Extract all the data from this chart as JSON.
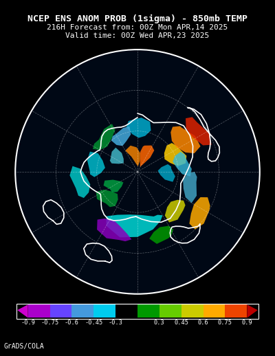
{
  "title_line1": "NCEP ENS ANOM PROB (1sigma) - 850mb TEMP",
  "title_line2": "216H Forecast from: 00Z Mon APR,14 2025",
  "title_line3": "Valid time: 00Z Wed APR,23 2025",
  "credit": "GrADS/COLA",
  "background_color": "#000000",
  "colorbar_tick_labels": [
    "-0.9",
    "-0.75",
    "-0.6",
    "-0.45",
    "-0.3",
    "0.3",
    "0.45",
    "0.6",
    "0.75",
    "0.9"
  ],
  "cb_colors": [
    "#aa00cc",
    "#6644ff",
    "#4499dd",
    "#00ccee",
    "#000000",
    "#009900",
    "#66cc00",
    "#cccc00",
    "#ffaa00",
    "#ee4400"
  ],
  "cb_left_arrow_color": "#cc00cc",
  "cb_right_arrow_color": "#bb0000",
  "title_fontsize": 9.5,
  "subtitle_fontsize": 8.0,
  "credit_fontsize": 7,
  "map_bg_color": "#000010",
  "grid_color": "#ffffff",
  "grid_alpha": 0.35,
  "grid_lw": 0.5,
  "coast_color": "#ffffff",
  "coast_lw": 1.2,
  "regions": [
    {
      "lons": [
        160,
        175,
        190,
        205,
        215,
        210,
        195,
        180,
        165,
        155,
        150,
        155,
        160
      ],
      "lats": [
        55,
        58,
        58,
        55,
        50,
        44,
        40,
        42,
        46,
        50,
        53,
        55,
        55
      ],
      "color": "#00cccc",
      "alpha": 0.9
    },
    {
      "lons": [
        195,
        205,
        215,
        220,
        215,
        205,
        198,
        190,
        185,
        190,
        195
      ],
      "lats": [
        38,
        36,
        38,
        44,
        48,
        50,
        48,
        44,
        40,
        38,
        38
      ],
      "color": "#8800bb",
      "alpha": 0.85
    },
    {
      "lons": [
        155,
        165,
        170,
        165,
        158,
        150,
        148,
        152,
        155
      ],
      "lats": [
        36,
        35,
        40,
        44,
        46,
        44,
        40,
        37,
        36
      ],
      "color": "#009900",
      "alpha": 0.85
    },
    {
      "lons": [
        130,
        140,
        148,
        148,
        140,
        132,
        125,
        122,
        125,
        130
      ],
      "lats": [
        46,
        44,
        46,
        52,
        56,
        57,
        54,
        50,
        47,
        46
      ],
      "color": "#cccc00",
      "alpha": 0.85
    },
    {
      "lons": [
        118,
        128,
        135,
        135,
        128,
        120,
        112,
        110,
        115,
        118
      ],
      "lats": [
        30,
        28,
        30,
        36,
        40,
        42,
        40,
        35,
        31,
        30
      ],
      "color": "#ffaa00",
      "alpha": 0.85
    },
    {
      "lons": [
        60,
        72,
        80,
        82,
        75,
        65,
        55,
        48,
        50,
        58,
        60
      ],
      "lats": [
        55,
        52,
        54,
        60,
        65,
        68,
        66,
        61,
        57,
        55,
        55
      ],
      "color": "#ffcc00",
      "alpha": 0.85
    },
    {
      "lons": [
        45,
        58,
        68,
        72,
        68,
        58,
        48,
        40,
        38,
        43,
        45
      ],
      "lats": [
        44,
        40,
        40,
        46,
        52,
        56,
        56,
        52,
        48,
        44,
        44
      ],
      "color": "#ff8800",
      "alpha": 0.85
    },
    {
      "lons": [
        50,
        62,
        70,
        68,
        58,
        48,
        42,
        45,
        50
      ],
      "lats": [
        33,
        30,
        32,
        38,
        42,
        42,
        37,
        33,
        33
      ],
      "color": "#dd2200",
      "alpha": 0.85
    },
    {
      "lons": [
        15,
        28,
        38,
        42,
        38,
        28,
        18,
        10,
        8,
        12,
        15
      ],
      "lats": [
        70,
        68,
        70,
        76,
        82,
        86,
        84,
        80,
        75,
        71,
        70
      ],
      "color": "#ff6600",
      "alpha": 0.85
    },
    {
      "lons": [
        330,
        345,
        358,
        8,
        12,
        5,
        350,
        338,
        330
      ],
      "lats": [
        72,
        70,
        72,
        76,
        82,
        86,
        84,
        78,
        72
      ],
      "color": "#ff8800",
      "alpha": 0.8
    },
    {
      "lons": [
        350,
        4,
        14,
        18,
        12,
        2,
        352,
        346,
        350
      ],
      "lats": [
        52,
        50,
        52,
        58,
        63,
        65,
        62,
        56,
        52
      ],
      "color": "#00aacc",
      "alpha": 0.85
    },
    {
      "lons": [
        330,
        342,
        350,
        350,
        340,
        330,
        322,
        320,
        325,
        330
      ],
      "lats": [
        58,
        56,
        56,
        62,
        66,
        68,
        65,
        60,
        58,
        58
      ],
      "color": "#44aadd",
      "alpha": 0.85
    },
    {
      "lons": [
        295,
        308,
        318,
        320,
        313,
        302,
        293,
        288,
        292,
        295
      ],
      "lats": [
        68,
        66,
        66,
        72,
        76,
        78,
        75,
        70,
        68,
        68
      ],
      "color": "#44bbcc",
      "alpha": 0.82
    },
    {
      "lons": [
        270,
        283,
        293,
        295,
        288,
        277,
        268,
        263,
        267,
        270
      ],
      "lats": [
        55,
        52,
        52,
        58,
        63,
        66,
        63,
        58,
        55,
        55
      ],
      "color": "#00bbcc",
      "alpha": 0.85
    },
    {
      "lons": [
        255,
        267,
        275,
        273,
        265,
        255,
        247,
        244,
        248,
        255
      ],
      "lats": [
        43,
        40,
        42,
        48,
        52,
        54,
        51,
        46,
        43,
        43
      ],
      "color": "#00cccc",
      "alpha": 0.82
    },
    {
      "lons": [
        310,
        322,
        332,
        332,
        322,
        310,
        300,
        297,
        303,
        310
      ],
      "lats": [
        53,
        50,
        50,
        55,
        59,
        61,
        58,
        53,
        52,
        53
      ],
      "color": "#009933",
      "alpha": 0.8
    },
    {
      "lons": [
        85,
        97,
        106,
        106,
        98,
        87,
        79,
        76,
        81,
        85
      ],
      "lats": [
        65,
        62,
        63,
        69,
        73,
        75,
        72,
        67,
        65,
        65
      ],
      "color": "#00aacc",
      "alpha": 0.8
    },
    {
      "lons": [
        75,
        87,
        95,
        93,
        84,
        74,
        67,
        65,
        70,
        75
      ],
      "lats": [
        53,
        50,
        51,
        57,
        61,
        63,
        60,
        55,
        53,
        53
      ],
      "color": "#33bbdd",
      "alpha": 0.8
    },
    {
      "lons": [
        100,
        112,
        120,
        118,
        110,
        100,
        92,
        90,
        95,
        100
      ],
      "lats": [
        46,
        43,
        44,
        50,
        54,
        56,
        53,
        48,
        46,
        46
      ],
      "color": "#44aacc",
      "alpha": 0.8
    },
    {
      "lons": [
        225,
        236,
        244,
        242,
        233,
        222,
        215,
        213,
        218,
        225
      ],
      "lats": [
        57,
        54,
        56,
        62,
        66,
        68,
        65,
        60,
        57,
        57
      ],
      "color": "#009933",
      "alpha": 0.8
    },
    {
      "lons": [
        238,
        248,
        255,
        252,
        243,
        233,
        227,
        225,
        231,
        238
      ],
      "lats": [
        66,
        63,
        65,
        71,
        75,
        77,
        74,
        69,
        66,
        66
      ],
      "color": "#00aa44",
      "alpha": 0.78
    }
  ],
  "coastlines": [
    {
      "lons": [
        0,
        5,
        10,
        18,
        25,
        32,
        38,
        45,
        55,
        65,
        75,
        85,
        95,
        105,
        115,
        125,
        135,
        145,
        155,
        165,
        175,
        182
      ],
      "lats": [
        47,
        48,
        50,
        52,
        50,
        47,
        44,
        42,
        43,
        45,
        48,
        52,
        55,
        57,
        55,
        52,
        50,
        48,
        49,
        52,
        55,
        57
      ]
    },
    {
      "lons": [
        182,
        188,
        194,
        200,
        206,
        212,
        218,
        224,
        228,
        232,
        235,
        238,
        240
      ],
      "lats": [
        57,
        56,
        54,
        52,
        50,
        49,
        50,
        52,
        54,
        56,
        57,
        58,
        58
      ]
    },
    {
      "lons": [
        240,
        245,
        250,
        255,
        260,
        265,
        270,
        275,
        280,
        285,
        290,
        295,
        298,
        300
      ],
      "lats": [
        58,
        56,
        54,
        52,
        50,
        49,
        48,
        49,
        50,
        52,
        54,
        56,
        57,
        58
      ]
    },
    {
      "lons": [
        300,
        305,
        310,
        315,
        320,
        325,
        330,
        335,
        340,
        345,
        350,
        355,
        360
      ],
      "lats": [
        58,
        57,
        55,
        53,
        52,
        52,
        53,
        54,
        55,
        55,
        54,
        52,
        50
      ]
    },
    {
      "lons": [
        130,
        132,
        135,
        140,
        145,
        148,
        150,
        152,
        153,
        152,
        150,
        148,
        145,
        142,
        140,
        138,
        135,
        132,
        130
      ],
      "lats": [
        30,
        28,
        26,
        25,
        26,
        28,
        30,
        33,
        36,
        39,
        41,
        42,
        41,
        39,
        37,
        34,
        32,
        30,
        30
      ]
    },
    {
      "lons": [
        38,
        42,
        48,
        55,
        62,
        68,
        72,
        75,
        78,
        80,
        82,
        82,
        80,
        77,
        73,
        68,
        62,
        56,
        50,
        44,
        40,
        38
      ],
      "lats": [
        30,
        28,
        27,
        28,
        30,
        32,
        34,
        36,
        37,
        37,
        35,
        32,
        30,
        28,
        27,
        28,
        30,
        31,
        30,
        29,
        29,
        30
      ]
    },
    {
      "lons": [
        200,
        204,
        208,
        212,
        215,
        215,
        212,
        208,
        204,
        200,
        197,
        196,
        197,
        200
      ],
      "lats": [
        20,
        18,
        17,
        18,
        21,
        25,
        28,
        30,
        30,
        28,
        25,
        22,
        20,
        20
      ]
    },
    {
      "lons": [
        240,
        243,
        247,
        250,
        252,
        252,
        249,
        245,
        241,
        238,
        236,
        237,
        240
      ],
      "lats": [
        18,
        16,
        15,
        16,
        19,
        23,
        26,
        28,
        28,
        26,
        22,
        19,
        18
      ]
    }
  ]
}
